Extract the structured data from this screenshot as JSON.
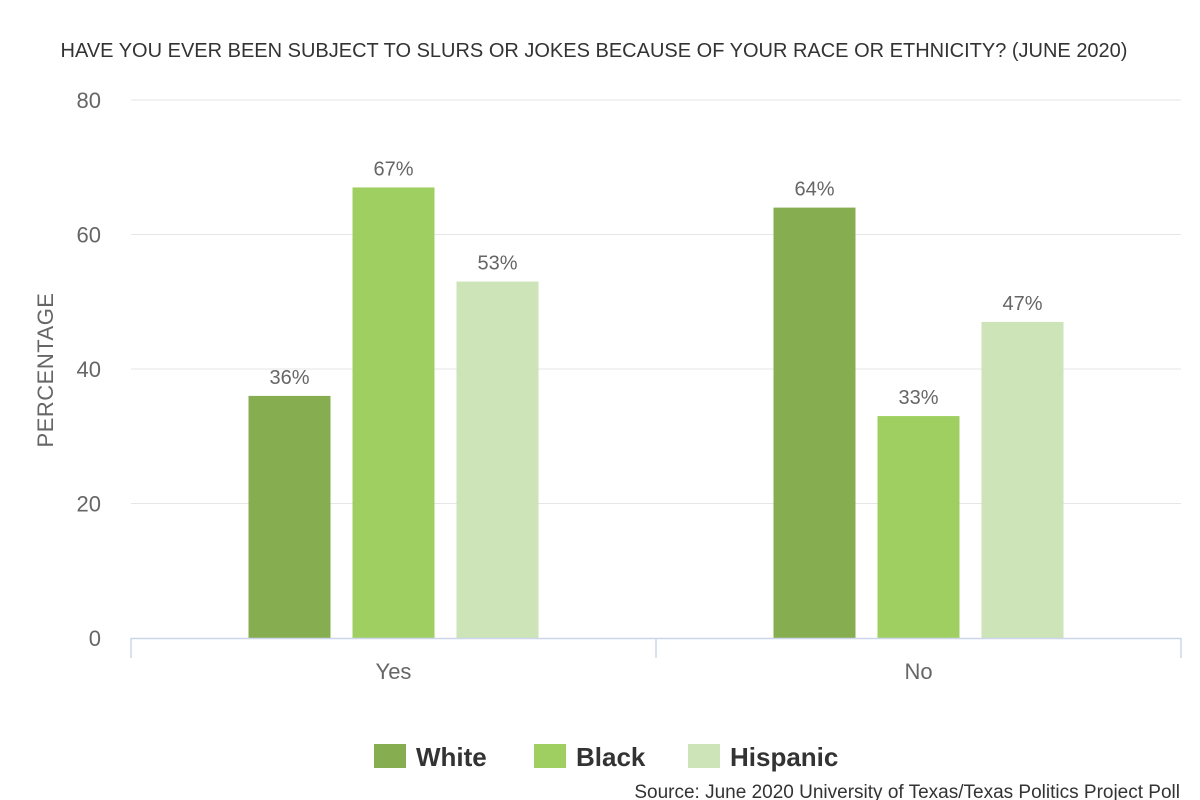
{
  "chart_data": {
    "type": "bar",
    "title": "HAVE YOU EVER BEEN SUBJECT TO SLURS OR JOKES BECAUSE OF YOUR RACE OR ETHNICITY? (JUNE 2020)",
    "xlabel": "",
    "ylabel": "PERCENTAGE",
    "ylim": [
      0,
      80
    ],
    "yticks": [
      0,
      20,
      40,
      60,
      80
    ],
    "categories": [
      "Yes",
      "No"
    ],
    "series": [
      {
        "name": "White",
        "color": "#86ad4f",
        "values": [
          36,
          64
        ],
        "labels": [
          "36%",
          "64%"
        ]
      },
      {
        "name": "Black",
        "color": "#a0cf61",
        "values": [
          67,
          33
        ],
        "labels": [
          "67%",
          "33%"
        ]
      },
      {
        "name": "Hispanic",
        "color": "#cde3b8",
        "values": [
          53,
          47
        ],
        "labels": [
          "53%",
          "47%"
        ]
      }
    ],
    "grid": true,
    "legend_position": "bottom"
  },
  "source": "Source: June 2020 University of Texas/Texas Politics Project Poll"
}
